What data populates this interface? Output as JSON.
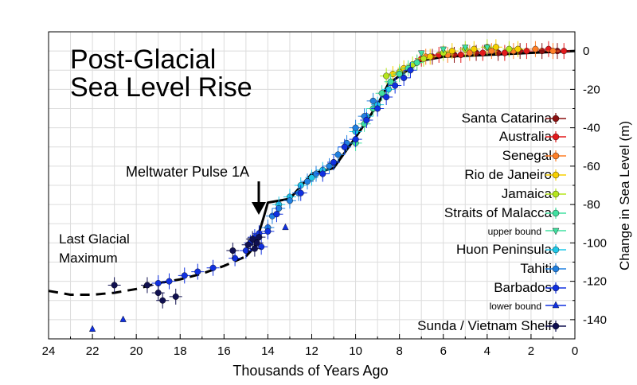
{
  "chart_data": {
    "type": "scatter",
    "title_lines": [
      "Post-Glacial",
      "Sea Level Rise"
    ],
    "xlabel": "Thousands of Years Ago",
    "ylabel": "Change in Sea Level (m)",
    "xlim": [
      24,
      0
    ],
    "ylim": [
      -150,
      10
    ],
    "xticks": [
      24,
      22,
      20,
      18,
      16,
      14,
      12,
      10,
      8,
      6,
      4,
      2,
      0
    ],
    "yticks": [
      0,
      -20,
      -40,
      -60,
      -80,
      -100,
      -120,
      -140
    ],
    "grid": true,
    "legend_position": "right",
    "annotations": [
      {
        "text": "Meltwater Pulse 1A",
        "x": 14.5,
        "y": -63
      },
      {
        "text_lines": [
          "Last Glacial",
          "Maximum"
        ],
        "x": 23.5,
        "y": -103
      }
    ],
    "trend_line": {
      "name": "",
      "solid": [
        [
          15.0,
          -107
        ],
        [
          14.6,
          -102
        ],
        [
          14.2,
          -87
        ],
        [
          14.0,
          -79
        ],
        [
          13.0,
          -77
        ],
        [
          12.0,
          -64
        ],
        [
          11.0,
          -61
        ],
        [
          10.0,
          -45
        ],
        [
          9.0,
          -28
        ],
        [
          8.5,
          -17
        ],
        [
          8.0,
          -13
        ],
        [
          7.5,
          -9
        ],
        [
          7.0,
          -5
        ],
        [
          6.0,
          -3
        ],
        [
          4.0,
          -2
        ],
        [
          2.0,
          -1
        ],
        [
          0.0,
          0
        ]
      ],
      "dashed": [
        [
          24.0,
          -125
        ],
        [
          23.0,
          -127
        ],
        [
          22.0,
          -127
        ],
        [
          21.0,
          -126
        ],
        [
          20.0,
          -124
        ],
        [
          19.0,
          -121
        ],
        [
          18.0,
          -119
        ],
        [
          17.0,
          -116
        ],
        [
          16.0,
          -112
        ],
        [
          15.0,
          -107
        ]
      ]
    },
    "series": [
      {
        "name": "Santa Catarina",
        "color": "#8b1010",
        "marker": "circle",
        "points": [
          [
            6.5,
            -3
          ],
          [
            5.5,
            -2
          ],
          [
            4.5,
            -1
          ],
          [
            3.5,
            -1
          ],
          [
            2.5,
            0
          ],
          [
            1.5,
            0
          ],
          [
            0.8,
            0
          ]
        ]
      },
      {
        "name": "Australia",
        "color": "#e41a1c",
        "marker": "circle",
        "points": [
          [
            7.0,
            -4
          ],
          [
            6.2,
            -2
          ],
          [
            5.2,
            -2
          ],
          [
            4.2,
            -1
          ],
          [
            3.2,
            -1
          ],
          [
            2.2,
            0
          ],
          [
            1.2,
            1
          ],
          [
            0.5,
            0
          ]
        ]
      },
      {
        "name": "Senegal",
        "color": "#ff7f27",
        "marker": "circle",
        "points": [
          [
            6.8,
            -3
          ],
          [
            5.8,
            -2
          ],
          [
            4.8,
            -1
          ],
          [
            3.8,
            0
          ],
          [
            2.8,
            0
          ],
          [
            1.8,
            1
          ],
          [
            1.0,
            0
          ]
        ]
      },
      {
        "name": "Rio de Janeiro",
        "color": "#f7d000",
        "marker": "circle",
        "points": [
          [
            8.3,
            -12
          ],
          [
            7.8,
            -9
          ],
          [
            7.2,
            -6
          ],
          [
            6.6,
            -3
          ],
          [
            5.6,
            0
          ],
          [
            4.6,
            1
          ],
          [
            3.6,
            2
          ],
          [
            2.6,
            1
          ]
        ]
      },
      {
        "name": "Jamaica",
        "color": "#b5e61d",
        "marker": "circle",
        "points": [
          [
            8.6,
            -13
          ],
          [
            8.0,
            -11
          ],
          [
            7.4,
            -7
          ],
          [
            6.9,
            -4
          ],
          [
            6.0,
            -1
          ],
          [
            5.0,
            1
          ],
          [
            4.0,
            2
          ],
          [
            3.0,
            1
          ]
        ]
      },
      {
        "name": "Straits of Malacca",
        "color": "#40e0a0",
        "marker": "circle",
        "points": [
          [
            10.0,
            -48
          ],
          [
            9.6,
            -38
          ],
          [
            9.2,
            -30
          ],
          [
            8.8,
            -22
          ],
          [
            8.4,
            -16
          ],
          [
            8.0,
            -12
          ],
          [
            7.6,
            -9
          ],
          [
            7.2,
            -6
          ]
        ]
      },
      {
        "name": "upper bound",
        "color": "#40e0a0",
        "marker": "triangle-down",
        "points": [
          [
            7.0,
            -1
          ],
          [
            6.0,
            1
          ],
          [
            5.0,
            2
          ],
          [
            4.0,
            2
          ]
        ]
      },
      {
        "name": "Huon Peninsula",
        "color": "#1fc8e8",
        "marker": "circle",
        "points": [
          [
            13.5,
            -80
          ],
          [
            13.0,
            -76
          ],
          [
            12.5,
            -70
          ],
          [
            12.0,
            -66
          ],
          [
            11.5,
            -62
          ],
          [
            11.0,
            -58
          ],
          [
            10.5,
            -50
          ],
          [
            10.0,
            -42
          ],
          [
            9.5,
            -34
          ],
          [
            9.0,
            -28
          ],
          [
            8.5,
            -20
          ]
        ]
      },
      {
        "name": "Tahiti",
        "color": "#2080e0",
        "marker": "circle",
        "points": [
          [
            14.0,
            -92
          ],
          [
            13.8,
            -86
          ],
          [
            13.5,
            -82
          ],
          [
            13.0,
            -78
          ],
          [
            12.6,
            -74
          ],
          [
            12.2,
            -68
          ],
          [
            11.8,
            -64
          ],
          [
            11.2,
            -60
          ],
          [
            10.8,
            -54
          ],
          [
            10.4,
            -48
          ],
          [
            10.0,
            -40
          ],
          [
            9.6,
            -34
          ],
          [
            9.2,
            -26
          ]
        ]
      },
      {
        "name": "Barbados",
        "color": "#1030e0",
        "marker": "circle",
        "points": [
          [
            19.0,
            -121
          ],
          [
            18.5,
            -120
          ],
          [
            17.8,
            -117
          ],
          [
            17.2,
            -115
          ],
          [
            16.5,
            -113
          ],
          [
            15.5,
            -108
          ],
          [
            15.0,
            -104
          ],
          [
            14.8,
            -100
          ],
          [
            14.6,
            -97
          ],
          [
            14.4,
            -95
          ],
          [
            14.3,
            -102
          ],
          [
            14.0,
            -94
          ],
          [
            13.6,
            -85
          ],
          [
            12.5,
            -74
          ],
          [
            11.5,
            -64
          ],
          [
            11.0,
            -58
          ],
          [
            10.5,
            -50
          ],
          [
            10.0,
            -46
          ],
          [
            9.5,
            -36
          ],
          [
            9.0,
            -30
          ],
          [
            8.6,
            -24
          ],
          [
            8.2,
            -18
          ],
          [
            7.8,
            -14
          ],
          [
            7.5,
            -10
          ]
        ]
      },
      {
        "name": "lower bound",
        "color": "#1030e0",
        "marker": "triangle-up",
        "points": [
          [
            22.0,
            -145
          ],
          [
            20.6,
            -140
          ],
          [
            13.2,
            -92
          ]
        ]
      },
      {
        "name": "Sunda / Vietnam Shelf",
        "color": "#101050",
        "marker": "circle",
        "points": [
          [
            21.0,
            -122
          ],
          [
            19.5,
            -122
          ],
          [
            19.0,
            -126
          ],
          [
            18.8,
            -130
          ],
          [
            18.2,
            -128
          ],
          [
            15.6,
            -104
          ],
          [
            14.9,
            -101
          ],
          [
            14.7,
            -98
          ],
          [
            14.6,
            -103
          ],
          [
            14.5,
            -100
          ],
          [
            14.4,
            -97
          ]
        ]
      }
    ]
  }
}
